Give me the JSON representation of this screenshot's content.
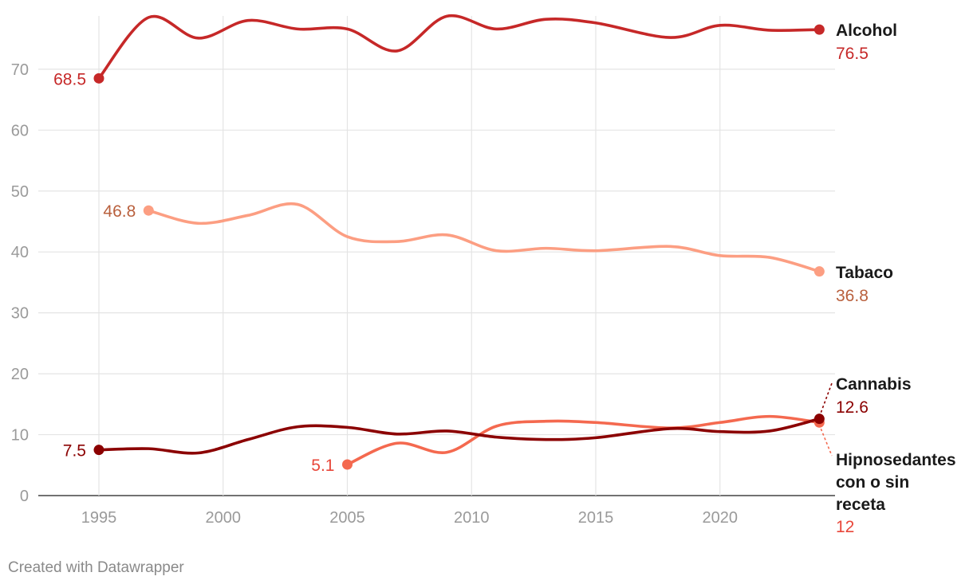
{
  "footer": {
    "credit": "Created with Datawrapper"
  },
  "chart_data": {
    "type": "line",
    "title": "",
    "xlabel": "",
    "ylabel": "",
    "xlim": [
      1992.5,
      2024.5
    ],
    "ylim": [
      0,
      78
    ],
    "x_ticks": [
      1995,
      2000,
      2005,
      2010,
      2015,
      2020
    ],
    "y_ticks": [
      0,
      10,
      20,
      30,
      40,
      50,
      60,
      70
    ],
    "grid": true,
    "legend": "direct labels at line ends",
    "series": [
      {
        "name": "Alcohol",
        "color": "#c62828",
        "value_color": "#c62828",
        "start_label": "68.5",
        "end_value_label": "76.5",
        "points": [
          [
            1995,
            68.5
          ],
          [
            1997,
            78.5
          ],
          [
            1999,
            75.1
          ],
          [
            2001,
            78.0
          ],
          [
            2003,
            76.6
          ],
          [
            2005,
            76.6
          ],
          [
            2007,
            73.0
          ],
          [
            2009,
            78.7
          ],
          [
            2011,
            76.6
          ],
          [
            2013,
            78.2
          ],
          [
            2015,
            77.6
          ],
          [
            2018,
            75.2
          ],
          [
            2020,
            77.2
          ],
          [
            2022,
            76.4
          ],
          [
            2024,
            76.5
          ]
        ]
      },
      {
        "name": "Tabaco",
        "color": "#fc9e82",
        "value_color": "#b9603d",
        "start_label": "46.8",
        "end_value_label": "36.8",
        "points": [
          [
            1997,
            46.8
          ],
          [
            1999,
            44.7
          ],
          [
            2001,
            46.0
          ],
          [
            2003,
            47.8
          ],
          [
            2005,
            42.5
          ],
          [
            2007,
            41.7
          ],
          [
            2009,
            42.8
          ],
          [
            2011,
            40.2
          ],
          [
            2013,
            40.6
          ],
          [
            2015,
            40.2
          ],
          [
            2018,
            40.9
          ],
          [
            2020,
            39.4
          ],
          [
            2022,
            39.1
          ],
          [
            2024,
            36.8
          ]
        ]
      },
      {
        "name": "Cannabis",
        "color": "#8b0000",
        "value_color": "#8b0000",
        "start_label": "7.5",
        "end_value_label": "12.6",
        "points": [
          [
            1995,
            7.5
          ],
          [
            1997,
            7.7
          ],
          [
            1999,
            7.0
          ],
          [
            2001,
            9.2
          ],
          [
            2003,
            11.3
          ],
          [
            2005,
            11.2
          ],
          [
            2007,
            10.1
          ],
          [
            2009,
            10.6
          ],
          [
            2011,
            9.6
          ],
          [
            2013,
            9.2
          ],
          [
            2015,
            9.5
          ],
          [
            2018,
            11.0
          ],
          [
            2020,
            10.5
          ],
          [
            2022,
            10.6
          ],
          [
            2024,
            12.6
          ]
        ]
      },
      {
        "name": "Hipnosedantes con o sin receta",
        "name_lines": [
          "Hipnosedantes",
          "con o sin",
          "receta"
        ],
        "color": "#f4694f",
        "value_color": "#e8473a",
        "start_label": "5.1",
        "end_value_label": "12",
        "points": [
          [
            2005,
            5.1
          ],
          [
            2007,
            8.6
          ],
          [
            2009,
            7.1
          ],
          [
            2011,
            11.4
          ],
          [
            2013,
            12.2
          ],
          [
            2015,
            12.0
          ],
          [
            2018,
            11.1
          ],
          [
            2020,
            12.0
          ],
          [
            2022,
            13.0
          ],
          [
            2024,
            12.0
          ]
        ]
      }
    ]
  }
}
